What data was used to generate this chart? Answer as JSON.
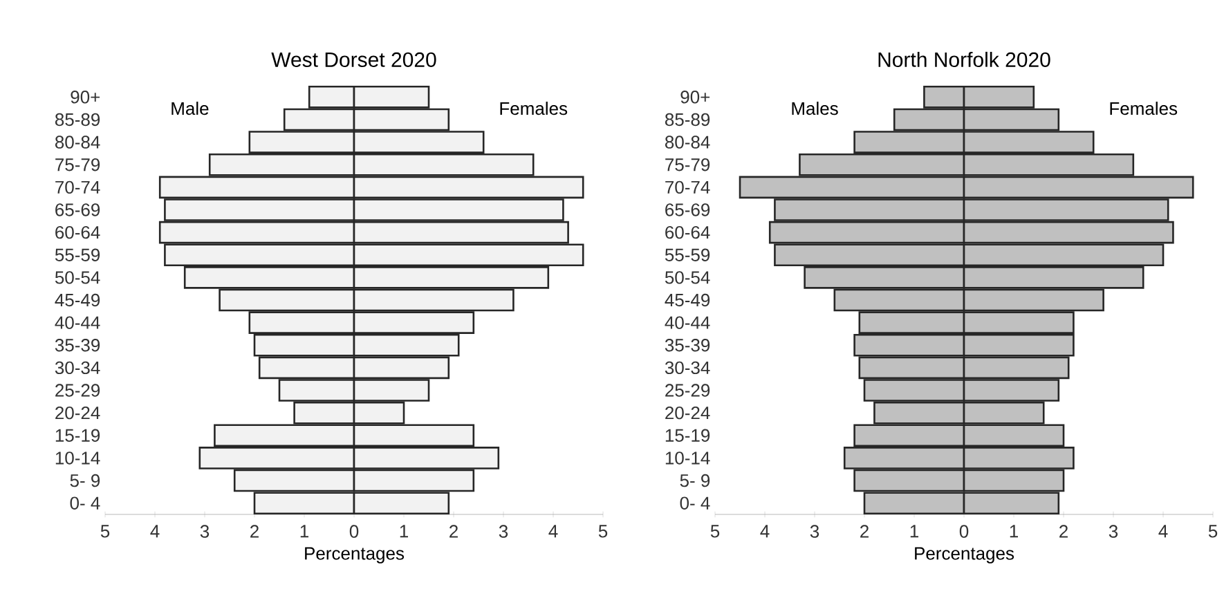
{
  "chart_data": [
    {
      "type": "bar",
      "orientation": "horizontal",
      "stacked": true,
      "title": "West Dorset 2020",
      "xlabel": "Percentages",
      "categories": [
        "90+",
        "85-89",
        "80-84",
        "75-79",
        "70-74",
        "65-69",
        "60-64",
        "55-59",
        "50-54",
        "45-49",
        "40-44",
        "35-39",
        "30-34",
        "25-29",
        "20-24",
        "15-19",
        "10-14",
        "5- 9",
        "0- 4"
      ],
      "series": [
        {
          "name": "Male",
          "color": "#f2f2f2",
          "values": [
            -0.9,
            -1.4,
            -2.1,
            -2.9,
            -3.9,
            -3.8,
            -3.9,
            -3.8,
            -3.4,
            -2.7,
            -2.1,
            -2.0,
            -1.9,
            -1.5,
            -1.2,
            -2.8,
            -3.1,
            -2.4,
            -2.0
          ]
        },
        {
          "name": "Females",
          "color": "#f2f2f2",
          "values": [
            1.5,
            1.9,
            2.6,
            3.6,
            4.6,
            4.2,
            4.3,
            4.6,
            3.9,
            3.2,
            2.4,
            2.1,
            1.9,
            1.5,
            1.0,
            2.4,
            2.9,
            2.4,
            1.9
          ]
        }
      ],
      "xlim": [
        -5,
        5
      ],
      "xticks": [
        {
          "value": -5,
          "label": "5"
        },
        {
          "value": -4,
          "label": "4"
        },
        {
          "value": -3,
          "label": "3"
        },
        {
          "value": -2,
          "label": "2"
        },
        {
          "value": -1,
          "label": "1"
        },
        0,
        1,
        2,
        3,
        4,
        5
      ]
    },
    {
      "type": "bar",
      "orientation": "horizontal",
      "stacked": true,
      "title": "North Norfolk 2020",
      "xlabel": "Percentages",
      "categories": [
        "90+",
        "85-89",
        "80-84",
        "75-79",
        "70-74",
        "65-69",
        "60-64",
        "55-59",
        "50-54",
        "45-49",
        "40-44",
        "35-39",
        "30-34",
        "25-29",
        "20-24",
        "15-19",
        "10-14",
        "5- 9",
        "0- 4"
      ],
      "series": [
        {
          "name": "Males",
          "color": "#c0c0c0",
          "values": [
            -0.8,
            -1.4,
            -2.2,
            -3.3,
            -4.5,
            -3.8,
            -3.9,
            -3.8,
            -3.2,
            -2.6,
            -2.1,
            -2.2,
            -2.1,
            -2.0,
            -1.8,
            -2.2,
            -2.4,
            -2.2,
            -2.0
          ]
        },
        {
          "name": "Females",
          "color": "#c0c0c0",
          "values": [
            1.4,
            1.9,
            2.6,
            3.4,
            4.6,
            4.1,
            4.2,
            4.0,
            3.6,
            2.8,
            2.2,
            2.2,
            2.1,
            1.9,
            1.6,
            2.0,
            2.2,
            2.0,
            1.9
          ]
        }
      ],
      "xlim": [
        -5,
        5
      ],
      "xticks": [
        {
          "value": -5,
          "label": "5"
        },
        {
          "value": -4,
          "label": "4"
        },
        {
          "value": -3,
          "label": "3"
        },
        {
          "value": -2,
          "label": "2"
        },
        {
          "value": -1,
          "label": "1"
        },
        0,
        1,
        2,
        3,
        4,
        5
      ]
    }
  ]
}
